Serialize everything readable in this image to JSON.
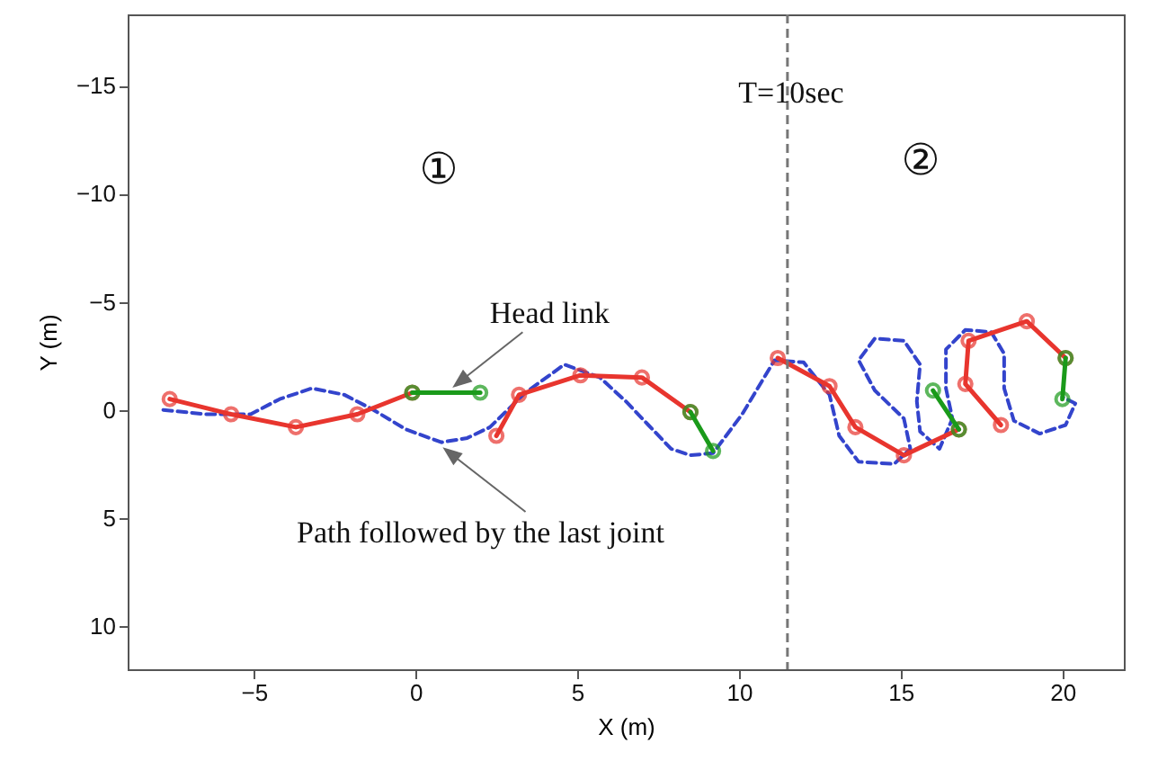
{
  "chart_data": {
    "type": "line",
    "xlabel": "X (m)",
    "ylabel": "Y (m)",
    "xlim": [
      -8.9,
      21.9
    ],
    "ylim": [
      12,
      -18.3
    ],
    "xticks": [
      -5,
      0,
      5,
      10,
      15,
      20
    ],
    "yticks": [
      -15,
      -10,
      -5,
      0,
      5,
      10
    ],
    "grid": false,
    "series": [
      {
        "color": "#3344cc",
        "line_style": "dashed",
        "marker": "none",
        "x": [
          -7.8,
          -6.5,
          -5.1,
          -4.2,
          -3.2,
          -2.2,
          -1.3,
          -0.3,
          0.8,
          1.6,
          2.3,
          3.4,
          4.6,
          5.7,
          6.5,
          7.2,
          7.9,
          8.5,
          9.2,
          10.1,
          11.1,
          12.0,
          12.8,
          13.1,
          13.7,
          14.8,
          15.3,
          15.1,
          14.2,
          13.7,
          14.2,
          15.1,
          15.6,
          15.5,
          15.6,
          16.2,
          16.6,
          16.4,
          16.4,
          17.0,
          17.8,
          18.2,
          18.2,
          18.5,
          19.3,
          20.1,
          20.4,
          20.0
        ],
        "values": [
          0.0,
          0.2,
          0.2,
          -0.5,
          -1.0,
          -0.7,
          0.0,
          0.9,
          1.5,
          1.3,
          0.8,
          -0.8,
          -2.1,
          -1.5,
          -0.4,
          0.7,
          1.8,
          2.1,
          2.0,
          0.2,
          -2.3,
          -2.2,
          -0.7,
          1.2,
          2.4,
          2.5,
          1.8,
          0.4,
          -0.9,
          -2.3,
          -3.3,
          -3.2,
          -2.1,
          -0.4,
          1.0,
          1.8,
          0.4,
          -1.0,
          -2.8,
          -3.7,
          -3.6,
          -2.6,
          -1.0,
          0.5,
          1.1,
          0.7,
          -0.3,
          -0.6
        ]
      },
      {
        "color": "#e8352e",
        "line_style": "solid",
        "marker": "circle",
        "x": [
          -7.6,
          -5.7,
          -3.7,
          -1.8,
          -0.1
        ],
        "values": [
          -0.5,
          0.2,
          0.8,
          0.2,
          -0.8
        ]
      },
      {
        "color": "#1a9a1a",
        "line_style": "solid",
        "marker": "circle",
        "x": [
          -0.1,
          2.0
        ],
        "values": [
          -0.8,
          -0.8
        ]
      },
      {
        "color": "#e8352e",
        "line_style": "solid",
        "marker": "circle",
        "x": [
          2.5,
          3.2,
          5.1,
          7.0,
          8.5
        ],
        "values": [
          1.2,
          -0.7,
          -1.6,
          -1.5,
          0.1
        ]
      },
      {
        "color": "#1a9a1a",
        "line_style": "solid",
        "marker": "circle",
        "x": [
          8.5,
          9.2
        ],
        "values": [
          0.1,
          1.9
        ]
      },
      {
        "color": "#e8352e",
        "line_style": "solid",
        "marker": "circle",
        "x": [
          11.2,
          12.8,
          13.6,
          15.1,
          16.8
        ],
        "values": [
          -2.4,
          -1.1,
          0.8,
          2.1,
          0.9
        ]
      },
      {
        "color": "#1a9a1a",
        "line_style": "solid",
        "marker": "circle",
        "x": [
          16.8,
          16.0
        ],
        "values": [
          0.9,
          -0.9
        ]
      },
      {
        "color": "#e8352e",
        "line_style": "solid",
        "marker": "circle",
        "x": [
          18.1,
          17.0,
          17.1,
          18.9,
          20.1
        ],
        "values": [
          0.7,
          -1.2,
          -3.2,
          -4.1,
          -2.4
        ]
      },
      {
        "color": "#1a9a1a",
        "line_style": "solid",
        "marker": "circle",
        "x": [
          20.1,
          20.0
        ],
        "values": [
          -2.4,
          -0.5
        ]
      }
    ],
    "ref_lines": [
      {
        "axis": "x",
        "value": 11.5,
        "color": "#777777",
        "line_style": "dashed"
      }
    ],
    "annotations": [
      "T=10sec",
      "①",
      "②",
      {
        "text": "Head link",
        "x": 1.2,
        "y": -1.1
      },
      {
        "text": "Path followed by the last joint",
        "x": 0.9,
        "y": 1.8
      }
    ]
  }
}
